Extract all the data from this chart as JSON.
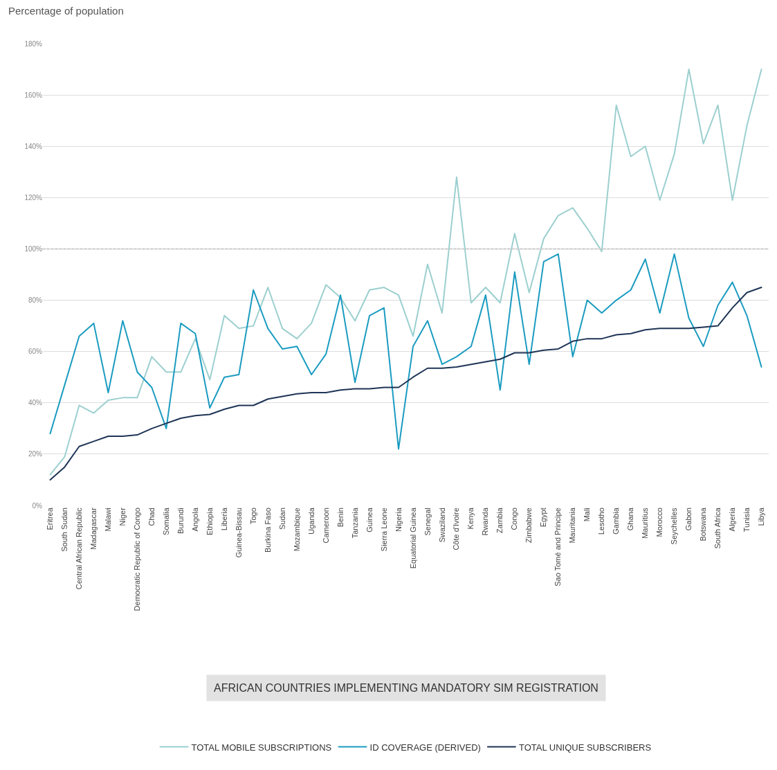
{
  "chart_data": {
    "type": "line",
    "ylabel": "Percentage of population",
    "annotations": [
      "AFRICAN COUNTRIES IMPLEMENTING MANDATORY SIM REGISTRATION"
    ],
    "categories": [
      "Eritrea",
      "South Sudan",
      "Central African Republic",
      "Madagascar",
      "Malawi",
      "Niger",
      "Democratic Republic of Congo",
      "Chad",
      "Somalia",
      "Burundi",
      "Angola",
      "Ethiopia",
      "Liberia",
      "Guinea-Bissau",
      "Togo",
      "Burkina Faso",
      "Sudan",
      "Mozambique",
      "Uganda",
      "Cameroon",
      "Benin",
      "Tanzania",
      "Guinea",
      "Sierra Leone",
      "Nigeria",
      "Equatorial Guinea",
      "Senegal",
      "Swaziland",
      "Côte d'Ivoire",
      "Kenya",
      "Rwanda",
      "Zambia",
      "Congo",
      "Zimbabwe",
      "Egypt",
      "Sao Tomé and Principe",
      "Mauritania",
      "Mali",
      "Lesotho",
      "Gambia",
      "Ghana",
      "Mauritius",
      "Morocco",
      "Seychelles",
      "Gabon",
      "Botswana",
      "South Africa",
      "Algeria",
      "Tunisia",
      "Libya"
    ],
    "series": [
      {
        "name": "TOTAL MOBILE SUBSCRIPTIONS",
        "color": "#9ccfcf",
        "values": [
          12,
          19,
          39,
          36,
          41,
          42,
          42,
          58,
          52,
          52,
          65,
          49,
          74,
          69,
          70,
          85,
          69,
          65,
          71,
          86,
          81,
          72,
          84,
          85,
          82,
          66,
          94,
          75,
          128,
          79,
          85,
          79,
          106,
          83,
          104,
          113,
          116,
          108,
          99,
          156,
          136,
          140,
          119,
          137,
          170,
          141,
          156,
          119,
          148,
          170
        ]
      },
      {
        "name": "ID COVERAGE (DERIVED)",
        "color": "#1a9bc0",
        "values": [
          28,
          47,
          66,
          71,
          44,
          72,
          52,
          46,
          30,
          71,
          67,
          38,
          50,
          51,
          84,
          69,
          61,
          62,
          51,
          59,
          82,
          48,
          74,
          77,
          22,
          62,
          72,
          55,
          58,
          62,
          82,
          45,
          91,
          55,
          95,
          98,
          58,
          80,
          75,
          80,
          84,
          96,
          75,
          98,
          73,
          62,
          78,
          87,
          74,
          54
        ]
      },
      {
        "name": "TOTAL UNIQUE SUBSCRIBERS",
        "color": "#1e3456",
        "values": [
          10,
          15,
          23,
          25,
          27,
          27,
          27.5,
          30,
          32,
          34,
          35,
          35.5,
          37.5,
          39,
          39,
          41.5,
          42.5,
          43.5,
          44,
          44,
          45,
          45.5,
          45.5,
          46,
          46,
          50,
          53.5,
          53.5,
          54,
          55,
          56,
          57,
          59.5,
          59.5,
          60.5,
          61,
          64,
          65,
          65,
          66.5,
          67,
          68.5,
          69,
          69,
          69,
          69.5,
          70,
          77,
          83,
          85
        ]
      }
    ],
    "ylim": [
      0,
      180
    ],
    "yticks": [
      {
        "value": 0,
        "label": "0%"
      },
      {
        "value": 20,
        "label": "20%"
      },
      {
        "value": 40,
        "label": "40%"
      },
      {
        "value": 60,
        "label": "60%"
      },
      {
        "value": 80,
        "label": "80%"
      },
      {
        "value": 100,
        "label": "100%"
      },
      {
        "value": 120,
        "label": "120%"
      },
      {
        "value": 140,
        "label": "140%"
      },
      {
        "value": 160,
        "label": "160%"
      },
      {
        "value": 180,
        "label": "180%"
      }
    ],
    "grid": "y",
    "legend": "bottom",
    "line_style": "solid",
    "ref_lines": [
      {
        "axis": "y",
        "value": 100,
        "line_style": "dotted",
        "color": "#cccccc"
      }
    ]
  }
}
